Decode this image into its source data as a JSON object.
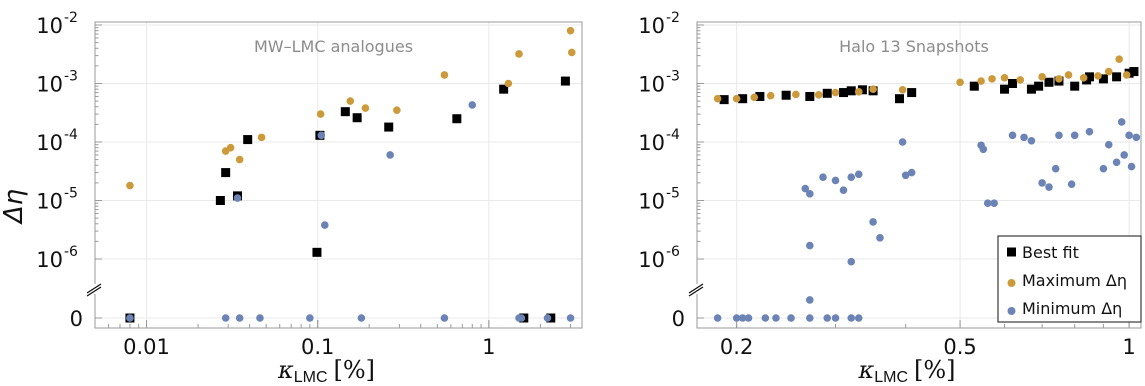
{
  "colors": {
    "best_fit": "#000000",
    "maximum": "#cc9a3a",
    "minimum": "#6b84b5"
  },
  "ylabel": "Δη",
  "y_tick_labels": [
    "10",
    "10",
    "10",
    "10",
    "10",
    "0"
  ],
  "y_tick_exponents": [
    "-2",
    "-3",
    "-4",
    "-5",
    "-6"
  ],
  "chart_data": [
    {
      "type": "scatter",
      "title": "MW–LMC analogues",
      "xlabel": "κ",
      "xlabel_sub": "LMC",
      "xlabel_unit": "[%]",
      "x_scale": "log",
      "y_scale": "log (with broken axis down to 0)",
      "xlim": [
        0.005,
        3.5
      ],
      "ylim": [
        1e-07,
        0.01
      ],
      "x_ticks": [
        0.01,
        0.1,
        1
      ],
      "x_tick_labels": [
        "0.01",
        "0.1",
        "1"
      ],
      "grid": true,
      "series": [
        {
          "name": "Best fit",
          "marker": "square",
          "color": "#000000",
          "points": [
            [
              0.008,
              0
            ],
            [
              0.027,
              1e-05
            ],
            [
              0.029,
              3e-05
            ],
            [
              0.034,
              1.2e-05
            ],
            [
              0.039,
              0.00011
            ],
            [
              0.099,
              1.3e-06
            ],
            [
              0.103,
              0.00013
            ],
            [
              0.145,
              0.00033
            ],
            [
              0.17,
              0.00026
            ],
            [
              0.26,
              0.00018
            ],
            [
              0.65,
              0.00025
            ],
            [
              1.22,
              0.0008
            ],
            [
              1.6,
              0
            ],
            [
              2.3,
              0
            ],
            [
              2.8,
              0.0011
            ]
          ]
        },
        {
          "name": "Maximum Δη",
          "marker": "circle",
          "color": "#cc9a3a",
          "points": [
            [
              0.008,
              1.8e-05
            ],
            [
              0.029,
              7e-05
            ],
            [
              0.031,
              8e-05
            ],
            [
              0.035,
              5e-05
            ],
            [
              0.047,
              0.00012
            ],
            [
              0.104,
              0.0003
            ],
            [
              0.155,
              0.0005
            ],
            [
              0.19,
              0.00038
            ],
            [
              0.29,
              0.00035
            ],
            [
              0.55,
              0.0014
            ],
            [
              1.3,
              0.001
            ],
            [
              1.5,
              0.0032
            ],
            [
              3.0,
              0.008
            ],
            [
              3.05,
              0.0034
            ]
          ]
        },
        {
          "name": "Minimum Δη",
          "marker": "circle",
          "color": "#6b84b5",
          "points": [
            [
              0.008,
              0
            ],
            [
              0.029,
              0
            ],
            [
              0.034,
              1.1e-05
            ],
            [
              0.035,
              0
            ],
            [
              0.046,
              0
            ],
            [
              0.09,
              0
            ],
            [
              0.105,
              0.00013
            ],
            [
              0.11,
              3.8e-06
            ],
            [
              0.18,
              0
            ],
            [
              0.265,
              6e-05
            ],
            [
              0.55,
              0
            ],
            [
              0.8,
              0.00043
            ],
            [
              1.5,
              0
            ],
            [
              1.55,
              0
            ],
            [
              2.2,
              0
            ],
            [
              3.0,
              0
            ]
          ]
        }
      ]
    },
    {
      "type": "scatter",
      "title": "Halo 13 Snapshots",
      "xlabel": "κ",
      "xlabel_sub": "LMC",
      "xlabel_unit": "[%]",
      "x_scale": "log",
      "y_scale": "log (with broken axis down to 0)",
      "xlim": [
        0.17,
        1.05
      ],
      "ylim": [
        1e-07,
        0.01
      ],
      "x_ticks": [
        0.2,
        0.5,
        1
      ],
      "x_tick_labels": [
        "0.2",
        "0.5",
        "1"
      ],
      "grid": true,
      "legend_position": "bottom-right",
      "series": [
        {
          "name": "Best fit",
          "marker": "square",
          "color": "#000000",
          "points": [
            [
              0.19,
              0.00053
            ],
            [
              0.205,
              0.00055
            ],
            [
              0.22,
              0.0006
            ],
            [
              0.245,
              0.00063
            ],
            [
              0.27,
              0.0006
            ],
            [
              0.29,
              0.00068
            ],
            [
              0.31,
              0.0007
            ],
            [
              0.32,
              0.00075
            ],
            [
              0.335,
              0.00078
            ],
            [
              0.35,
              0.00075
            ],
            [
              0.39,
              0.00055
            ],
            [
              0.41,
              0.0007
            ],
            [
              0.53,
              0.0009
            ],
            [
              0.6,
              0.0008
            ],
            [
              0.62,
              0.001
            ],
            [
              0.67,
              0.0008
            ],
            [
              0.69,
              0.0009
            ],
            [
              0.72,
              0.00105
            ],
            [
              0.75,
              0.0011
            ],
            [
              0.8,
              0.0009
            ],
            [
              0.84,
              0.00115
            ],
            [
              0.85,
              0.0013
            ],
            [
              0.9,
              0.0012
            ],
            [
              0.95,
              0.0013
            ],
            [
              1.0,
              0.0015
            ],
            [
              1.02,
              0.0016
            ]
          ]
        },
        {
          "name": "Maximum Δη",
          "marker": "circle",
          "color": "#cc9a3a",
          "points": [
            [
              0.185,
              0.00055
            ],
            [
              0.2,
              0.00055
            ],
            [
              0.215,
              0.00058
            ],
            [
              0.23,
              0.00062
            ],
            [
              0.255,
              0.00065
            ],
            [
              0.28,
              0.00064
            ],
            [
              0.3,
              0.0007
            ],
            [
              0.33,
              0.00072
            ],
            [
              0.35,
              0.0008
            ],
            [
              0.395,
              0.00078
            ],
            [
              0.5,
              0.00105
            ],
            [
              0.545,
              0.0011
            ],
            [
              0.57,
              0.0012
            ],
            [
              0.6,
              0.00125
            ],
            [
              0.64,
              0.00115
            ],
            [
              0.7,
              0.0013
            ],
            [
              0.75,
              0.0012
            ],
            [
              0.78,
              0.0014
            ],
            [
              0.83,
              0.00125
            ],
            [
              0.88,
              0.00135
            ],
            [
              0.92,
              0.0016
            ],
            [
              0.96,
              0.0026
            ],
            [
              0.99,
              0.0014
            ]
          ]
        },
        {
          "name": "Minimum Δη",
          "marker": "circle",
          "color": "#6b84b5",
          "points": [
            [
              0.185,
              0
            ],
            [
              0.2,
              0
            ],
            [
              0.205,
              0
            ],
            [
              0.21,
              0
            ],
            [
              0.225,
              0
            ],
            [
              0.235,
              0
            ],
            [
              0.25,
              0
            ],
            [
              0.27,
              0
            ],
            [
              0.29,
              0
            ],
            [
              0.3,
              0
            ],
            [
              0.32,
              0
            ],
            [
              0.33,
              0
            ],
            [
              0.27,
              2e-07
            ],
            [
              0.27,
              1.7e-06
            ],
            [
              0.265,
              1.6e-05
            ],
            [
              0.27,
              1.3e-05
            ],
            [
              0.285,
              2.5e-05
            ],
            [
              0.3,
              2.2e-05
            ],
            [
              0.31,
              1.5e-05
            ],
            [
              0.32,
              2.5e-05
            ],
            [
              0.33,
              2.8e-05
            ],
            [
              0.35,
              4.3e-06
            ],
            [
              0.36,
              2.3e-06
            ],
            [
              0.32,
              9e-07
            ],
            [
              0.395,
              0.0001
            ],
            [
              0.4,
              2.7e-05
            ],
            [
              0.41,
              3e-05
            ],
            [
              0.545,
              8.8e-05
            ],
            [
              0.55,
              7.5e-05
            ],
            [
              0.56,
              9e-06
            ],
            [
              0.575,
              9e-06
            ],
            [
              0.62,
              0.00013
            ],
            [
              0.65,
              0.00012
            ],
            [
              0.67,
              0.000105
            ],
            [
              0.7,
              2e-05
            ],
            [
              0.72,
              1.7e-05
            ],
            [
              0.74,
              3.5e-05
            ],
            [
              0.75,
              0.00013
            ],
            [
              0.79,
              1.9e-05
            ],
            [
              0.8,
              0.00013
            ],
            [
              0.85,
              0.00015
            ],
            [
              0.9,
              3.5e-05
            ],
            [
              0.92,
              9e-05
            ],
            [
              0.95,
              4.5e-05
            ],
            [
              0.97,
              0.00022
            ],
            [
              0.98,
              6e-05
            ],
            [
              1.0,
              0.00013
            ],
            [
              1.01,
              3.8e-05
            ],
            [
              1.03,
              0.00012
            ]
          ]
        }
      ]
    }
  ]
}
